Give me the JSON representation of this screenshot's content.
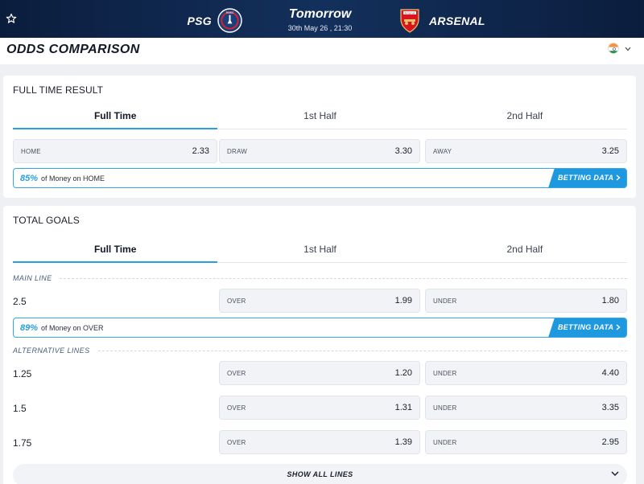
{
  "match": {
    "home_team": "PSG",
    "away_team": "ARSENAL",
    "when": "Tomorrow",
    "date": "30th May 26 , 21:30",
    "home_crest_icon": "psg-crest-icon",
    "away_crest_icon": "arsenal-crest-icon",
    "home_crest_text": "PARIS",
    "away_crest_text": "Arsenal"
  },
  "page": {
    "title": "ODDS COMPARISON",
    "region_flag_icon": "india-flag-icon"
  },
  "colors": {
    "header_bg": "#13305c",
    "accent": "#2a9fdc",
    "betting_button": "#1e98de"
  },
  "full_time_result": {
    "title": "FULL TIME RESULT",
    "tabs": [
      "Full Time",
      "1st Half",
      "2nd Half"
    ],
    "active_tab": "Full Time",
    "odds": [
      {
        "label": "HOME",
        "value": "2.33"
      },
      {
        "label": "DRAW",
        "value": "3.30"
      },
      {
        "label": "AWAY",
        "value": "3.25"
      }
    ],
    "money": {
      "percent": "85%",
      "text": "of Money on HOME",
      "button": "BETTING DATA"
    }
  },
  "total_goals": {
    "title": "TOTAL GOALS",
    "tabs": [
      "Full Time",
      "1st Half",
      "2nd Half"
    ],
    "active_tab": "Full Time",
    "main_line_label": "MAIN LINE",
    "main_line": {
      "line": "2.5",
      "over_label": "OVER",
      "over": "1.99",
      "under_label": "UNDER",
      "under": "1.80"
    },
    "money": {
      "percent": "89%",
      "text": "of Money on OVER",
      "button": "BETTING DATA"
    },
    "alt_lines_label": "ALTERNATIVE LINES",
    "alt_lines": [
      {
        "line": "1.25",
        "over_label": "OVER",
        "over": "1.20",
        "under_label": "UNDER",
        "under": "4.40"
      },
      {
        "line": "1.5",
        "over_label": "OVER",
        "over": "1.31",
        "under_label": "UNDER",
        "under": "3.35"
      },
      {
        "line": "1.75",
        "over_label": "OVER",
        "over": "1.39",
        "under_label": "UNDER",
        "under": "2.95"
      }
    ],
    "show_all": "SHOW ALL LINES"
  }
}
